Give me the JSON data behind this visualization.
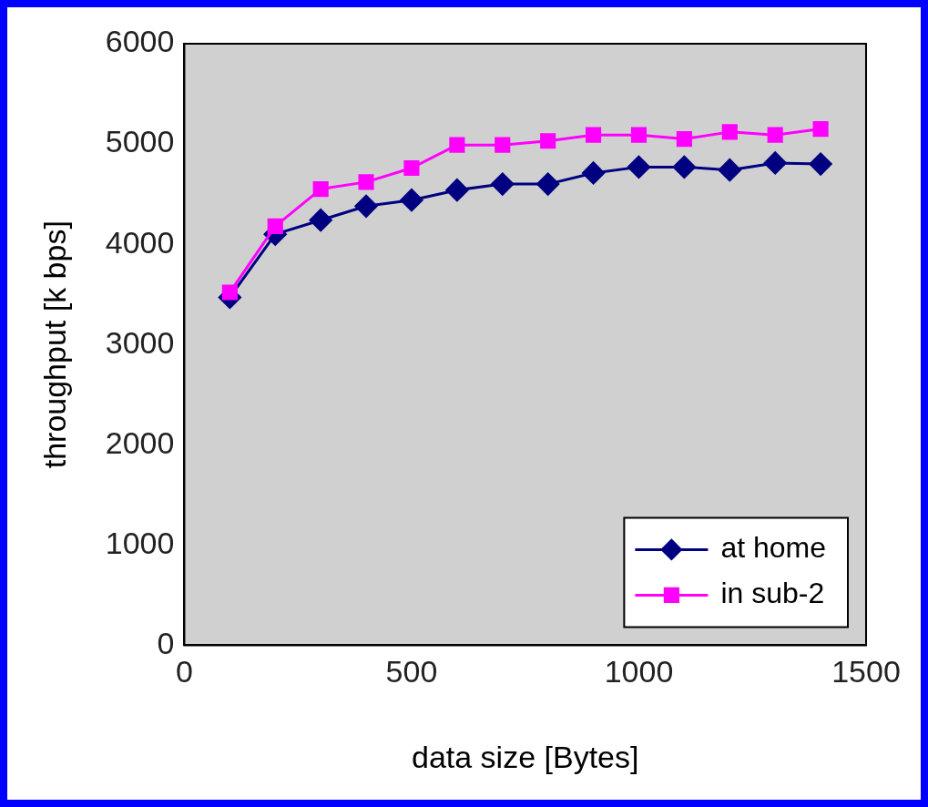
{
  "chart_data": {
    "type": "line",
    "xlabel": "data size [Bytes]",
    "ylabel": "throughput [k bps]",
    "x": [
      100,
      200,
      300,
      400,
      500,
      600,
      700,
      800,
      900,
      1000,
      1100,
      1200,
      1300,
      1400
    ],
    "series": [
      {
        "name": "at home",
        "color": "#000080",
        "marker": "diamond",
        "values": [
          3470,
          4100,
          4240,
          4380,
          4440,
          4540,
          4600,
          4600,
          4710,
          4770,
          4770,
          4740,
          4810,
          4800
        ]
      },
      {
        "name": "in sub-2",
        "color": "#ff00ff",
        "marker": "square",
        "values": [
          3520,
          4180,
          4550,
          4620,
          4760,
          4990,
          4990,
          5030,
          5090,
          5090,
          5050,
          5120,
          5090,
          5150
        ]
      }
    ],
    "xlim": [
      0,
      1500
    ],
    "xticks": [
      0,
      500,
      1000,
      1500
    ],
    "ylim": [
      0,
      6000
    ],
    "yticks": [
      0,
      1000,
      2000,
      3000,
      4000,
      5000,
      6000
    ],
    "grid": false,
    "legend": "bottom right"
  }
}
